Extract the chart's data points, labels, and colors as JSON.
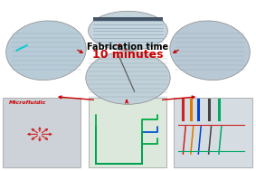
{
  "title_line1": "Fabrication time",
  "title_line2": "10 minutes",
  "title_line1_color": "#000000",
  "title_line2_color": "#cc0000",
  "title_line1_fontsize": 7,
  "title_line2_fontsize": 9,
  "background_color": "#ffffff",
  "fig_width": 2.83,
  "fig_height": 1.89,
  "microfluidic_text": "Microfluidic",
  "microfluidic_color": "#cc0000",
  "microfluidic_fontsize": 4.5
}
